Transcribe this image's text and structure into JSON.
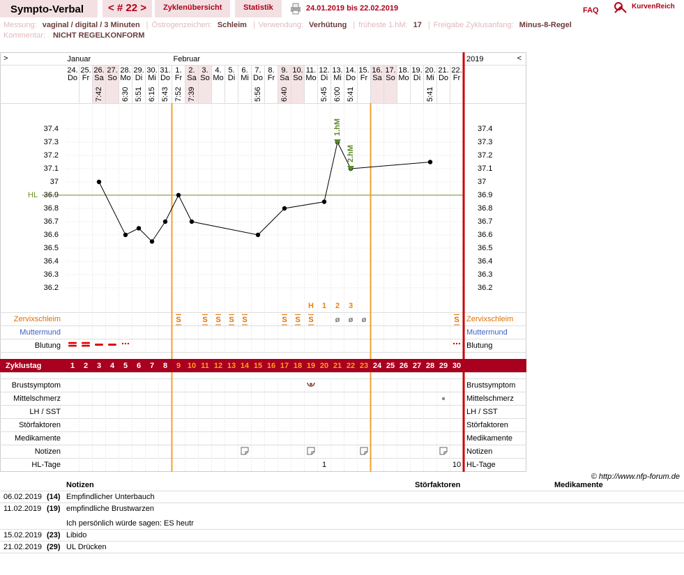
{
  "header": {
    "title": "Sympto-Verbal",
    "cycle_nav": "< # 22 >",
    "tabs": [
      "Zyklenübersicht",
      "Statistik"
    ],
    "date_range": "24.01.2019 bis 22.02.2019",
    "faq": "FAQ",
    "logo": "KurvenReich"
  },
  "info": {
    "fields": [
      {
        "label": "Messung:",
        "value": "vaginal / digital / 3 Minuten"
      },
      {
        "label": "Östrogenzeichen:",
        "value": "Schleim"
      },
      {
        "label": "Verwendung:",
        "value": "Verhütung"
      },
      {
        "label": "früheste 1.hM:",
        "value": 17
      },
      {
        "label": "Freigabe Zyklusanfang:",
        "value": "Minus-8-Regel"
      }
    ],
    "comment": {
      "label": "Kommentar:",
      "value": "NICHT REGELKONFORM"
    }
  },
  "chart_data": {
    "type": "line",
    "nav_prev": ">",
    "nav_next": "<",
    "year": 2019,
    "months": [
      {
        "label": "Januar",
        "day": 1
      },
      {
        "label": "Februar",
        "day": 9
      }
    ],
    "dates": [
      "24.",
      "25.",
      "26.",
      "27.",
      "28.",
      "29.",
      "30.",
      "31.",
      "1.",
      "2.",
      "3.",
      "4.",
      "5.",
      "6.",
      "7.",
      "8.",
      "9.",
      "10.",
      "11.",
      "12.",
      "13.",
      "14.",
      "15.",
      "16.",
      "17.",
      "18.",
      "19.",
      "20.",
      "21.",
      "22."
    ],
    "weekdays": [
      "Do",
      "Fr",
      "Sa",
      "So",
      "Mo",
      "Di",
      "Mi",
      "Do",
      "Fr",
      "Sa",
      "So",
      "Mo",
      "Di",
      "Mi",
      "Do",
      "Fr",
      "Sa",
      "So",
      "Mo",
      "Di",
      "Mi",
      "Do",
      "Fr",
      "Sa",
      "So",
      "Mo",
      "Di",
      "Mi",
      "Do",
      "Fr"
    ],
    "times": [
      null,
      null,
      "7:42",
      null,
      "6:30",
      "5:51",
      "6:15",
      "5:43",
      "7:52",
      "7:39",
      null,
      null,
      null,
      null,
      "5:56",
      null,
      "6:40",
      null,
      null,
      "5:45",
      "6:00",
      "5:41",
      null,
      null,
      null,
      null,
      null,
      "5:41",
      null,
      null
    ],
    "shaded_days": [
      3,
      4,
      10,
      11,
      17,
      18,
      24,
      25
    ],
    "cycle_day_label": "Zyklustag",
    "cycle_days": [
      1,
      2,
      3,
      4,
      5,
      6,
      7,
      8,
      9,
      10,
      11,
      12,
      13,
      14,
      15,
      16,
      17,
      18,
      19,
      20,
      21,
      22,
      23,
      24,
      25,
      26,
      27,
      28,
      29,
      30
    ],
    "fertile_window": [
      9,
      23
    ],
    "x": [
      3,
      5,
      6,
      7,
      8,
      9,
      10,
      15,
      17,
      20,
      21,
      22,
      28
    ],
    "values": [
      37.0,
      36.6,
      36.65,
      36.55,
      36.7,
      36.9,
      36.7,
      36.6,
      36.8,
      36.85,
      37.3,
      37.1,
      37.15
    ],
    "color": "#000000",
    "ylim": [
      36.0,
      37.6
    ],
    "yticks": [
      37.4,
      37.3,
      37.2,
      37.1,
      37,
      36.9,
      36.8,
      36.7,
      36.6,
      36.5,
      36.4,
      36.3,
      36.2
    ],
    "grid": true,
    "coverline": {
      "label": "HL",
      "value": 36.9,
      "color": "#6b8e23"
    },
    "peak_markers": [
      {
        "label": "1.hM",
        "day": 21
      },
      {
        "label": "2.hM",
        "day": 22
      }
    ],
    "peak_marker_color": "#5a8a2a",
    "peak_count": [
      {
        "day": 19,
        "label": "H"
      },
      {
        "day": 20,
        "label": 1
      },
      {
        "day": 21,
        "label": 2
      },
      {
        "day": 22,
        "label": 3
      }
    ]
  },
  "rows": {
    "mucus": {
      "label": "Zervixschleim",
      "entries": [
        {
          "day": 9,
          "symbol": "S"
        },
        {
          "day": 11,
          "symbol": "S"
        },
        {
          "day": 12,
          "symbol": "S"
        },
        {
          "day": 13,
          "symbol": "S"
        },
        {
          "day": 14,
          "symbol": "S"
        },
        {
          "day": 17,
          "symbol": "S"
        },
        {
          "day": 18,
          "symbol": "S"
        },
        {
          "day": 19,
          "symbol": "S"
        },
        {
          "day": 21,
          "symbol": "ø"
        },
        {
          "day": 22,
          "symbol": "ø"
        },
        {
          "day": 23,
          "symbol": "ø"
        },
        {
          "day": 30,
          "symbol": "S"
        }
      ]
    },
    "cervix": {
      "label": "Muttermund"
    },
    "bleeding": {
      "label": "Blutung",
      "entries": [
        {
          "day": 1,
          "level": 3
        },
        {
          "day": 2,
          "level": 3
        },
        {
          "day": 3,
          "level": 2
        },
        {
          "day": 4,
          "level": 2
        },
        {
          "day": 5,
          "level": 1
        },
        {
          "day": 30,
          "level": 1
        }
      ]
    },
    "breast": {
      "label": "Brustsymptom",
      "days": [
        19
      ]
    },
    "midpain": {
      "label": "Mittelschmerz",
      "days": [
        29
      ]
    },
    "lh": {
      "label": "LH / SST"
    },
    "disturb": {
      "label": "Störfaktoren"
    },
    "meds": {
      "label": "Medikamente"
    },
    "notes": {
      "label": "Notizen",
      "days": [
        14,
        19,
        23,
        29
      ]
    },
    "hl_days": {
      "label": "HL-Tage",
      "entries": [
        {
          "day": 20,
          "value": 1
        },
        {
          "day": 30,
          "value": 10
        }
      ]
    }
  },
  "footer": "© http://www.nfp-forum.de",
  "notes_table": {
    "headers": [
      "Notizen",
      "Störfaktoren",
      "Medikamente"
    ],
    "rows": [
      {
        "date": "06.02.2019",
        "day": "(14)",
        "text": [
          "Empfindlicher Unterbauch"
        ]
      },
      {
        "date": "11.02.2019",
        "day": "(19)",
        "text": [
          "empfindliche Brustwarzen",
          "Ich persönlich würde sagen: ES heutr"
        ]
      },
      {
        "date": "15.02.2019",
        "day": "(23)",
        "text": [
          "Libido"
        ]
      },
      {
        "date": "21.02.2019",
        "day": "(29)",
        "text": [
          "UL Drücken"
        ]
      }
    ]
  }
}
